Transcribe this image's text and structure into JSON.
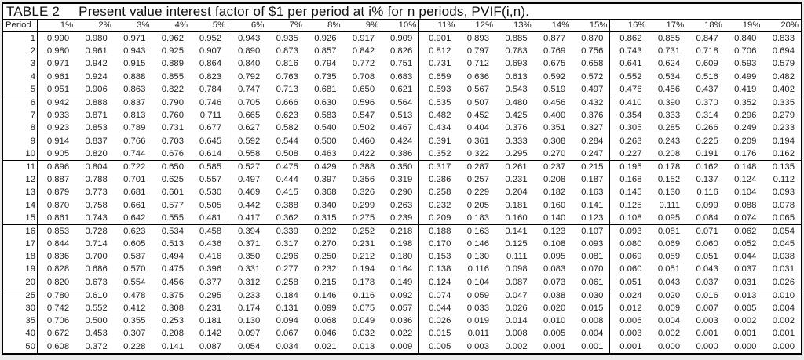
{
  "title": {
    "label": "TABLE 2",
    "text": "Present value interest factor of $1 per period at i% for n periods, PVIF(i,n)."
  },
  "colors": {
    "border": "#000000",
    "text": "#1d1d1d",
    "table_background": "#ffffff",
    "page_background": "#ebebeb"
  },
  "table": {
    "period_header": "Period",
    "rate_headers": [
      "1%",
      "2%",
      "3%",
      "4%",
      "5%",
      "6%",
      "7%",
      "8%",
      "9%",
      "10%",
      "11%",
      "12%",
      "13%",
      "14%",
      "15%",
      "16%",
      "17%",
      "18%",
      "19%",
      "20%"
    ],
    "rows": [
      {
        "period": "1",
        "values": [
          "0.990",
          "0.980",
          "0.971",
          "0.962",
          "0.952",
          "0.943",
          "0.935",
          "0.926",
          "0.917",
          "0.909",
          "0.901",
          "0.893",
          "0.885",
          "0.877",
          "0.870",
          "0.862",
          "0.855",
          "0.847",
          "0.840",
          "0.833"
        ]
      },
      {
        "period": "2",
        "values": [
          "0.980",
          "0.961",
          "0.943",
          "0.925",
          "0.907",
          "0.890",
          "0.873",
          "0.857",
          "0.842",
          "0.826",
          "0.812",
          "0.797",
          "0.783",
          "0.769",
          "0.756",
          "0.743",
          "0.731",
          "0.718",
          "0.706",
          "0.694"
        ]
      },
      {
        "period": "3",
        "values": [
          "0.971",
          "0.942",
          "0.915",
          "0.889",
          "0.864",
          "0.840",
          "0.816",
          "0.794",
          "0.772",
          "0.751",
          "0.731",
          "0.712",
          "0.693",
          "0.675",
          "0.658",
          "0.641",
          "0.624",
          "0.609",
          "0.593",
          "0.579"
        ]
      },
      {
        "period": "4",
        "values": [
          "0.961",
          "0.924",
          "0.888",
          "0.855",
          "0.823",
          "0.792",
          "0.763",
          "0.735",
          "0.708",
          "0.683",
          "0.659",
          "0.636",
          "0.613",
          "0.592",
          "0.572",
          "0.552",
          "0.534",
          "0.516",
          "0.499",
          "0.482"
        ]
      },
      {
        "period": "5",
        "values": [
          "0.951",
          "0.906",
          "0.863",
          "0.822",
          "0.784",
          "0.747",
          "0.713",
          "0.681",
          "0.650",
          "0.621",
          "0.593",
          "0.567",
          "0.543",
          "0.519",
          "0.497",
          "0.476",
          "0.456",
          "0.437",
          "0.419",
          "0.402"
        ]
      },
      {
        "period": "6",
        "values": [
          "0.942",
          "0.888",
          "0.837",
          "0.790",
          "0.746",
          "0.705",
          "0.666",
          "0.630",
          "0.596",
          "0.564",
          "0.535",
          "0.507",
          "0.480",
          "0.456",
          "0.432",
          "0.410",
          "0.390",
          "0.370",
          "0.352",
          "0.335"
        ]
      },
      {
        "period": "7",
        "values": [
          "0.933",
          "0.871",
          "0.813",
          "0.760",
          "0.711",
          "0.665",
          "0.623",
          "0.583",
          "0.547",
          "0.513",
          "0.482",
          "0.452",
          "0.425",
          "0.400",
          "0.376",
          "0.354",
          "0.333",
          "0.314",
          "0.296",
          "0.279"
        ]
      },
      {
        "period": "8",
        "values": [
          "0.923",
          "0.853",
          "0.789",
          "0.731",
          "0.677",
          "0.627",
          "0.582",
          "0.540",
          "0.502",
          "0.467",
          "0.434",
          "0.404",
          "0.376",
          "0.351",
          "0.327",
          "0.305",
          "0.285",
          "0.266",
          "0.249",
          "0.233"
        ]
      },
      {
        "period": "9",
        "values": [
          "0.914",
          "0.837",
          "0.766",
          "0.703",
          "0.645",
          "0.592",
          "0.544",
          "0.500",
          "0.460",
          "0.424",
          "0.391",
          "0.361",
          "0.333",
          "0.308",
          "0.284",
          "0.263",
          "0.243",
          "0.225",
          "0.209",
          "0.194"
        ]
      },
      {
        "period": "10",
        "values": [
          "0.905",
          "0.820",
          "0.744",
          "0.676",
          "0.614",
          "0.558",
          "0.508",
          "0.463",
          "0.422",
          "0.386",
          "0.352",
          "0.322",
          "0.295",
          "0.270",
          "0.247",
          "0.227",
          "0.208",
          "0.191",
          "0.176",
          "0.162"
        ]
      },
      {
        "period": "11",
        "values": [
          "0.896",
          "0.804",
          "0.722",
          "0.650",
          "0.585",
          "0.527",
          "0.475",
          "0.429",
          "0.388",
          "0.350",
          "0.317",
          "0.287",
          "0.261",
          "0.237",
          "0.215",
          "0.195",
          "0.178",
          "0.162",
          "0.148",
          "0.135"
        ]
      },
      {
        "period": "12",
        "values": [
          "0.887",
          "0.788",
          "0.701",
          "0.625",
          "0.557",
          "0.497",
          "0.444",
          "0.397",
          "0.356",
          "0.319",
          "0.286",
          "0.257",
          "0.231",
          "0.208",
          "0.187",
          "0.168",
          "0.152",
          "0.137",
          "0.124",
          "0.112"
        ]
      },
      {
        "period": "13",
        "values": [
          "0.879",
          "0.773",
          "0.681",
          "0.601",
          "0.530",
          "0.469",
          "0.415",
          "0.368",
          "0.326",
          "0.290",
          "0.258",
          "0.229",
          "0.204",
          "0.182",
          "0.163",
          "0.145",
          "0.130",
          "0.116",
          "0.104",
          "0.093"
        ]
      },
      {
        "period": "14",
        "values": [
          "0.870",
          "0.758",
          "0.661",
          "0.577",
          "0.505",
          "0.442",
          "0.388",
          "0.340",
          "0.299",
          "0.263",
          "0.232",
          "0.205",
          "0.181",
          "0.160",
          "0.141",
          "0.125",
          "0.111",
          "0.099",
          "0.088",
          "0.078"
        ]
      },
      {
        "period": "15",
        "values": [
          "0.861",
          "0.743",
          "0.642",
          "0.555",
          "0.481",
          "0.417",
          "0.362",
          "0.315",
          "0.275",
          "0.239",
          "0.209",
          "0.183",
          "0.160",
          "0.140",
          "0.123",
          "0.108",
          "0.095",
          "0.084",
          "0.074",
          "0.065"
        ]
      },
      {
        "period": "16",
        "values": [
          "0.853",
          "0.728",
          "0.623",
          "0.534",
          "0.458",
          "0.394",
          "0.339",
          "0.292",
          "0.252",
          "0.218",
          "0.188",
          "0.163",
          "0.141",
          "0.123",
          "0.107",
          "0.093",
          "0.081",
          "0.071",
          "0.062",
          "0.054"
        ]
      },
      {
        "period": "17",
        "values": [
          "0.844",
          "0.714",
          "0.605",
          "0.513",
          "0.436",
          "0.371",
          "0.317",
          "0.270",
          "0.231",
          "0.198",
          "0.170",
          "0.146",
          "0.125",
          "0.108",
          "0.093",
          "0.080",
          "0.069",
          "0.060",
          "0.052",
          "0.045"
        ]
      },
      {
        "period": "18",
        "values": [
          "0.836",
          "0.700",
          "0.587",
          "0.494",
          "0.416",
          "0.350",
          "0.296",
          "0.250",
          "0.212",
          "0.180",
          "0.153",
          "0.130",
          "0.111",
          "0.095",
          "0.081",
          "0.069",
          "0.059",
          "0.051",
          "0.044",
          "0.038"
        ]
      },
      {
        "period": "19",
        "values": [
          "0.828",
          "0.686",
          "0.570",
          "0.475",
          "0.396",
          "0.331",
          "0.277",
          "0.232",
          "0.194",
          "0.164",
          "0.138",
          "0.116",
          "0.098",
          "0.083",
          "0.070",
          "0.060",
          "0.051",
          "0.043",
          "0.037",
          "0.031"
        ]
      },
      {
        "period": "20",
        "values": [
          "0.820",
          "0.673",
          "0.554",
          "0.456",
          "0.377",
          "0.312",
          "0.258",
          "0.215",
          "0.178",
          "0.149",
          "0.124",
          "0.104",
          "0.087",
          "0.073",
          "0.061",
          "0.051",
          "0.043",
          "0.037",
          "0.031",
          "0.026"
        ]
      },
      {
        "period": "25",
        "values": [
          "0.780",
          "0.610",
          "0.478",
          "0.375",
          "0.295",
          "0.233",
          "0.184",
          "0.146",
          "0.116",
          "0.092",
          "0.074",
          "0.059",
          "0.047",
          "0.038",
          "0.030",
          "0.024",
          "0.020",
          "0.016",
          "0.013",
          "0.010"
        ]
      },
      {
        "period": "30",
        "values": [
          "0.742",
          "0.552",
          "0.412",
          "0.308",
          "0.231",
          "0.174",
          "0.131",
          "0.099",
          "0.075",
          "0.057",
          "0.044",
          "0.033",
          "0.026",
          "0.020",
          "0.015",
          "0.012",
          "0.009",
          "0.007",
          "0.005",
          "0.004"
        ]
      },
      {
        "period": "35",
        "values": [
          "0.706",
          "0.500",
          "0.355",
          "0.253",
          "0.181",
          "0.130",
          "0.094",
          "0.068",
          "0.049",
          "0.036",
          "0.026",
          "0.019",
          "0.014",
          "0.010",
          "0.008",
          "0.006",
          "0.004",
          "0.003",
          "0.002",
          "0.002"
        ]
      },
      {
        "period": "40",
        "values": [
          "0.672",
          "0.453",
          "0.307",
          "0.208",
          "0.142",
          "0.097",
          "0.067",
          "0.046",
          "0.032",
          "0.022",
          "0.015",
          "0.011",
          "0.008",
          "0.005",
          "0.004",
          "0.003",
          "0.002",
          "0.001",
          "0.001",
          "0.001"
        ]
      },
      {
        "period": "50",
        "values": [
          "0.608",
          "0.372",
          "0.228",
          "0.141",
          "0.087",
          "0.054",
          "0.034",
          "0.021",
          "0.013",
          "0.009",
          "0.005",
          "0.003",
          "0.002",
          "0.001",
          "0.001",
          "0.001",
          "0.000",
          "0.000",
          "0.000",
          "0.000"
        ]
      }
    ]
  }
}
